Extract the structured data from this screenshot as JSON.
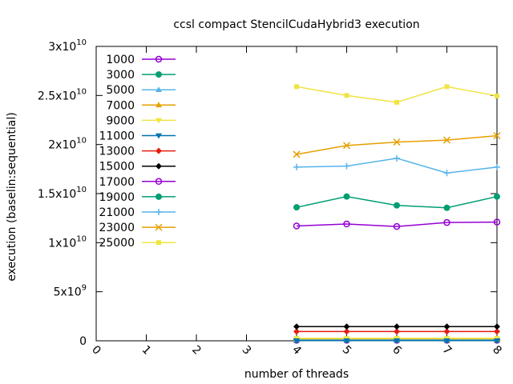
{
  "chart_data": {
    "type": "line",
    "title": "ccsl compact StencilCudaHybrid3 execution",
    "xlabel": "number of threads",
    "ylabel": "execution (baselin:sequential)",
    "xlim": [
      0,
      8
    ],
    "ylim": [
      0,
      30000000000
    ],
    "x_ticks": [
      "0",
      "1",
      "2",
      "3",
      "4",
      "5",
      "6",
      "7",
      "8"
    ],
    "y_ticks": [
      {
        "value": 0,
        "mant": "0",
        "exp": ""
      },
      {
        "value": 5000000000,
        "mant": "5x10",
        "exp": "9"
      },
      {
        "value": 10000000000,
        "mant": "1x10",
        "exp": "10"
      },
      {
        "value": 15000000000,
        "mant": "1.5x10",
        "exp": "10"
      },
      {
        "value": 20000000000,
        "mant": "2x10",
        "exp": "10"
      },
      {
        "value": 25000000000,
        "mant": "2.5x10",
        "exp": "10"
      },
      {
        "value": 30000000000,
        "mant": "3x10",
        "exp": "10"
      }
    ],
    "grid": false,
    "legend_position": "top-left",
    "x": [
      4,
      5,
      6,
      7,
      8
    ],
    "series": [
      {
        "name": "1000",
        "color": "#9400d3",
        "marker": "circle-open",
        "values": [
          50000000,
          50000000,
          50000000,
          50000000,
          50000000
        ]
      },
      {
        "name": "3000",
        "color": "#009e73",
        "marker": "circle-filled",
        "values": [
          100000000,
          100000000,
          100000000,
          100000000,
          100000000
        ]
      },
      {
        "name": "5000",
        "color": "#56b4e9",
        "marker": "triangle-up",
        "values": [
          150000000,
          150000000,
          150000000,
          150000000,
          150000000
        ]
      },
      {
        "name": "7000",
        "color": "#e69f00",
        "marker": "triangle-up",
        "values": [
          200000000,
          200000000,
          200000000,
          200000000,
          200000000
        ]
      },
      {
        "name": "9000",
        "color": "#f0e442",
        "marker": "triangle-down",
        "values": [
          250000000,
          250000000,
          250000000,
          250000000,
          250000000
        ]
      },
      {
        "name": "11000",
        "color": "#0072b2",
        "marker": "triangle-down",
        "values": [
          20000000,
          20000000,
          20000000,
          20000000,
          20000000
        ]
      },
      {
        "name": "13000",
        "color": "#e51e10",
        "marker": "diamond",
        "values": [
          950000000,
          950000000,
          950000000,
          950000000,
          950000000
        ]
      },
      {
        "name": "15000",
        "color": "#000000",
        "marker": "diamond",
        "values": [
          1450000000,
          1450000000,
          1450000000,
          1450000000,
          1450000000
        ]
      },
      {
        "name": "17000",
        "color": "#9400d3",
        "marker": "circle-open",
        "values": [
          11700000000,
          11900000000,
          11650000000,
          12050000000,
          12100000000
        ]
      },
      {
        "name": "19000",
        "color": "#009e73",
        "marker": "circle-filled",
        "values": [
          13600000000,
          14700000000,
          13800000000,
          13550000000,
          14700000000
        ]
      },
      {
        "name": "21000",
        "color": "#56b4e9",
        "marker": "plus",
        "values": [
          17700000000,
          17800000000,
          18600000000,
          17100000000,
          17700000000
        ]
      },
      {
        "name": "23000",
        "color": "#e69f00",
        "marker": "cross",
        "values": [
          19000000000,
          19900000000,
          20250000000,
          20450000000,
          20900000000
        ]
      },
      {
        "name": "25000",
        "color": "#f0e442",
        "marker": "square",
        "values": [
          25900000000,
          25000000000,
          24300000000,
          25900000000,
          24950000000
        ]
      }
    ]
  }
}
